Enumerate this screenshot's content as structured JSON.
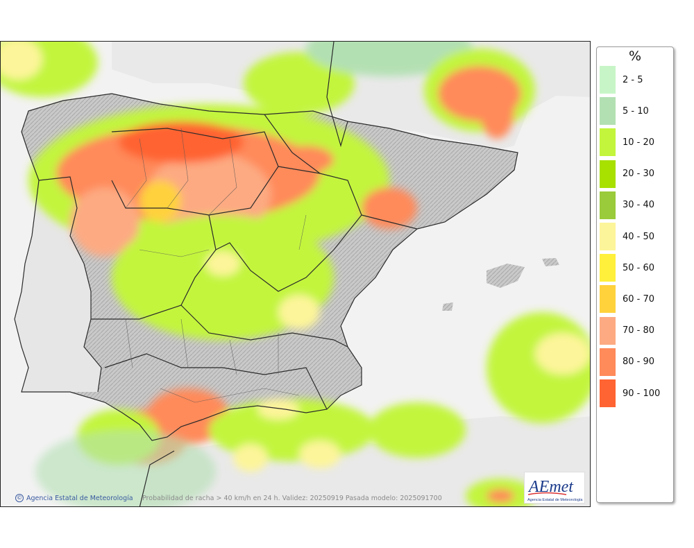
{
  "legend": {
    "title": "%",
    "items": [
      {
        "label": "2 - 5",
        "color": "#c8f5c8"
      },
      {
        "label": "5 - 10",
        "color": "#b3e0b3"
      },
      {
        "label": "10 - 20",
        "color": "#c3f53c"
      },
      {
        "label": "20 - 30",
        "color": "#a8e000"
      },
      {
        "label": "30 - 40",
        "color": "#9acb3a"
      },
      {
        "label": "40 - 50",
        "color": "#fdf59a"
      },
      {
        "label": "50 - 60",
        "color": "#fff03c"
      },
      {
        "label": "60 - 70",
        "color": "#ffd23c"
      },
      {
        "label": "70 - 80",
        "color": "#fdaa82"
      },
      {
        "label": "80 - 90",
        "color": "#ff8a5a"
      },
      {
        "label": "90 - 100",
        "color": "#ff6432"
      }
    ]
  },
  "footer": {
    "credit": "Agencia Estatal de Meteorología",
    "caption": "Probabilidad de racha > 40 km/h en 24 h. Validez: 20250919 Pasada modelo: 2025091700"
  },
  "logo": {
    "text": "AEmet",
    "subtitle": "Agencia Estatal de Meteorología"
  },
  "colors": {
    "land": "#cfcfcf",
    "foreign_land": "#e9e9e9",
    "sea": "#f2f2f2",
    "borders": "#2a2a2a"
  }
}
